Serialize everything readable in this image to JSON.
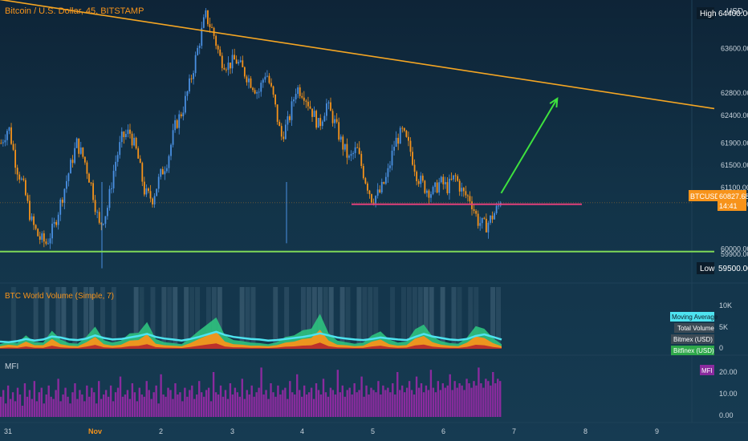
{
  "header": {
    "title": "Bitcoin / U.S. Dollar, 45, BITSTAMP",
    "currency": "USD"
  },
  "colors": {
    "background": "#123348",
    "up": "#4a90e2",
    "down": "#f7931a",
    "trendline": "#f5a623",
    "support": "#7ed957",
    "resistance": "#e0407a",
    "arrow": "#3ee23e",
    "mfi": "#8a2b9e",
    "ma": "#4ee3f0",
    "total_volume": "#2ec27e",
    "bitmex": "#f7931a"
  },
  "price_axis": {
    "ticks": [
      "64400.00",
      "63600.00",
      "62800.00",
      "62400.00",
      "61900.00",
      "61500.00",
      "61100.00",
      "60800.00",
      "60000.00",
      "59900.00",
      "59500.00"
    ],
    "high_label": "High",
    "high_value": "64400.00",
    "low_label": "Low",
    "low_value": "59500.00",
    "current_symbol": "BTCUSD",
    "current_price": "60827.68",
    "countdown": "14:41"
  },
  "time_axis": {
    "ticks": [
      "31",
      "Nov",
      "2",
      "3",
      "4",
      "5",
      "6",
      "7",
      "8",
      "9"
    ]
  },
  "volume_panel": {
    "title": "BTC World Volume (Simple, 7)",
    "axis_ticks": [
      "10K",
      "5K",
      "0"
    ],
    "legend": [
      "Moving Average",
      "Total Volume",
      "Bitmex  (USD)",
      "Bitfinex (USD)"
    ]
  },
  "mfi_panel": {
    "title": "MFI",
    "badge": "MFI",
    "axis_ticks": [
      "20.00",
      "10.00",
      "0.00"
    ]
  },
  "chart_data": [
    {
      "type": "candlestick",
      "title": "Bitcoin / U.S. Dollar, 45, BITSTAMP",
      "ylim": [
        59500,
        64400
      ],
      "x_ticks": [
        "31",
        "Nov",
        "2",
        "3",
        "4",
        "5",
        "6",
        "7",
        "8",
        "9"
      ],
      "close_path": [
        61900,
        62200,
        61500,
        61100,
        60500,
        60200,
        60100,
        60400,
        60900,
        61400,
        61900,
        61600,
        61100,
        60400,
        60700,
        61500,
        62000,
        62100,
        61700,
        61000,
        60900,
        61300,
        61600,
        62200,
        62500,
        63000,
        63600,
        64200,
        63900,
        63400,
        63300,
        63400,
        63200,
        63000,
        62800,
        63200,
        62700,
        62000,
        62300,
        62900,
        62800,
        62500,
        62200,
        62600,
        62300,
        61900,
        61600,
        61800,
        61300,
        60900,
        61000,
        61300,
        61900,
        62100,
        61800,
        61300,
        61100,
        61000,
        61200,
        61100,
        61300,
        61000,
        60900,
        60500,
        60400,
        60600,
        60827.68
      ],
      "trendline": {
        "start": [
          0,
          64480
        ],
        "end": [
          1,
          62520
        ]
      },
      "support_level": 59950,
      "resistance_segment_level": 60800,
      "projection_arrow": {
        "from": [
          0.67,
          61000
        ],
        "to": [
          0.745,
          62700
        ]
      }
    },
    {
      "type": "area",
      "title": "BTC World Volume (Simple, 7)",
      "ylim": [
        0,
        12000
      ],
      "series": [
        {
          "name": "Moving Average",
          "values": [
            1400,
            1300,
            1500,
            1900,
            1600,
            1800,
            2400,
            2200,
            1800,
            1700,
            2000,
            2600,
            2100,
            1800,
            1900,
            2200,
            2500,
            2900,
            2300,
            2000,
            1800,
            1600,
            1900,
            2300,
            2800,
            3300,
            2700,
            2300,
            2100,
            1900,
            1800,
            1600,
            1700,
            1900,
            2100,
            2300,
            2600,
            3000,
            2600,
            2200,
            2000,
            1800,
            1700,
            1900,
            2200,
            2000,
            1800,
            1700,
            2300,
            2900,
            2400,
            2100,
            1800,
            1700,
            1900,
            2500,
            2800,
            2300,
            1800
          ]
        },
        {
          "name": "Total Volume",
          "values": [
            900,
            1400,
            1100,
            2600,
            1300,
            1200,
            3500,
            1800,
            1100,
            1000,
            2400,
            4300,
            1700,
            1200,
            1600,
            3000,
            3100,
            5200,
            1900,
            1300,
            1100,
            900,
            2100,
            3500,
            4800,
            6100,
            2600,
            1700,
            1500,
            1200,
            1100,
            900,
            1300,
            2300,
            2600,
            3600,
            3900,
            6800,
            3000,
            1600,
            1300,
            1000,
            1200,
            2600,
            3400,
            1800,
            1200,
            1400,
            3800,
            4700,
            2400,
            1500,
            1100,
            1000,
            2200,
            4400,
            3900,
            2100,
            900
          ]
        },
        {
          "name": "Bitmex  (USD)",
          "values": [
            500,
            800,
            600,
            1400,
            700,
            700,
            1900,
            900,
            600,
            500,
            1300,
            2300,
            900,
            600,
            800,
            1600,
            1700,
            2800,
            1000,
            700,
            600,
            500,
            1100,
            1900,
            2600,
            3300,
            1400,
            900,
            800,
            600,
            600,
            500,
            700,
            1200,
            1400,
            1900,
            2100,
            3700,
            1600,
            800,
            700,
            500,
            600,
            1400,
            1800,
            900,
            600,
            700,
            2000,
            2500,
            1300,
            800,
            600,
            500,
            1200,
            2400,
            2100,
            1100,
            500
          ]
        },
        {
          "name": "Bitfinex (USD)",
          "values": [
            150,
            250,
            200,
            450,
            220,
            200,
            600,
            300,
            200,
            170,
            420,
            760,
            300,
            200,
            260,
            520,
            560,
            900,
            330,
            230,
            200,
            160,
            360,
            600,
            840,
            1050,
            450,
            300,
            260,
            210,
            200,
            160,
            230,
            400,
            460,
            620,
            680,
            1200,
            520,
            280,
            230,
            170,
            210,
            450,
            600,
            310,
            210,
            240,
            660,
            820,
            420,
            260,
            200,
            170,
            380,
            780,
            680,
            360,
            160
          ]
        }
      ]
    },
    {
      "type": "bar",
      "title": "MFI",
      "ylim": [
        0,
        25
      ],
      "values": [
        9,
        12,
        6,
        14,
        8,
        11,
        7,
        13,
        10,
        5,
        15,
        9,
        12,
        8,
        16,
        7,
        11,
        13,
        6,
        10,
        14,
        9,
        8,
        12,
        17,
        7,
        10,
        13,
        9,
        6,
        11,
        15,
        8,
        12,
        10,
        7,
        14,
        9,
        13,
        11,
        6,
        16,
        8,
        10,
        12,
        9,
        14,
        7,
        11,
        13,
        18,
        9,
        10,
        12,
        8,
        15,
        11,
        7,
        13,
        10,
        9,
        16,
        12,
        8,
        11,
        14,
        6,
        19,
        10,
        9,
        13,
        12,
        8,
        15,
        10,
        11,
        7,
        13,
        9,
        12,
        14,
        8,
        10,
        16,
        11,
        9,
        12,
        13,
        7,
        20,
        11,
        10,
        14,
        9,
        12,
        8,
        15,
        10,
        13,
        11,
        9,
        17,
        8,
        12,
        10,
        14,
        9,
        11,
        13,
        22,
        10,
        12,
        8,
        15,
        11,
        9,
        14,
        10,
        12,
        13,
        8,
        16,
        11,
        10,
        19,
        12,
        9,
        14,
        10,
        11,
        13,
        8,
        15,
        12,
        10,
        17,
        11,
        9,
        13,
        12,
        10,
        21,
        11,
        14,
        9,
        12,
        13,
        10,
        15,
        11,
        12,
        18,
        9,
        14,
        10,
        13,
        12,
        11,
        16,
        10,
        14,
        12,
        13,
        11,
        15,
        10,
        20,
        12,
        14,
        11,
        13,
        16,
        12,
        10,
        18,
        13,
        15,
        11,
        14,
        12,
        21,
        13,
        11,
        16,
        12,
        15,
        13,
        14,
        19,
        12,
        16,
        13,
        15,
        14,
        12,
        17,
        15,
        13,
        16,
        14,
        22,
        15,
        13,
        17,
        16,
        14,
        20,
        15,
        17,
        16
      ]
    }
  ]
}
